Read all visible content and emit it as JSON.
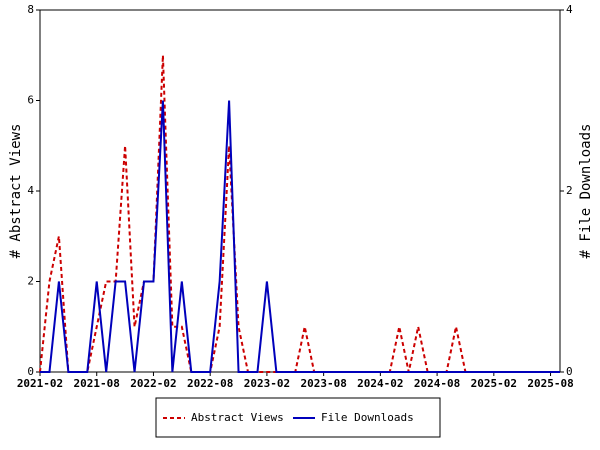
{
  "chart_data": {
    "type": "line",
    "y_label": "# Abstract Views",
    "y2_label": "# File Downloads",
    "x": [
      "2021-02",
      "2021-03",
      "2021-04",
      "2021-05",
      "2021-06",
      "2021-07",
      "2021-08",
      "2021-09",
      "2021-10",
      "2021-11",
      "2021-12",
      "2022-01",
      "2022-02",
      "2022-03",
      "2022-04",
      "2022-05",
      "2022-06",
      "2022-07",
      "2022-08",
      "2022-09",
      "2022-10",
      "2022-11",
      "2022-12",
      "2023-01",
      "2023-02",
      "2023-03",
      "2023-04",
      "2023-05",
      "2023-06",
      "2023-07",
      "2023-08",
      "2023-09",
      "2023-10",
      "2023-11",
      "2023-12",
      "2024-01",
      "2024-02",
      "2024-03",
      "2024-04",
      "2024-05",
      "2024-06",
      "2024-07",
      "2024-08",
      "2024-09",
      "2024-10",
      "2024-11",
      "2024-12",
      "2025-01",
      "2025-02",
      "2025-03",
      "2025-04",
      "2025-05",
      "2025-06",
      "2025-07",
      "2025-08",
      "2025-09"
    ],
    "xticks": [
      "2021-02",
      "2021-08",
      "2022-02",
      "2022-08",
      "2023-02",
      "2023-08",
      "2024-02",
      "2024-08",
      "2025-02",
      "2025-08"
    ],
    "ylim": [
      0,
      8
    ],
    "yticks": [
      0,
      2,
      4,
      6,
      8
    ],
    "y2lim": [
      0,
      4
    ],
    "y2ticks": [
      0,
      2,
      4
    ],
    "series": [
      {
        "name": "Abstract Views",
        "color": "#cc0000",
        "dash": true,
        "values": [
          0,
          2,
          3,
          0,
          0,
          0,
          1,
          2,
          2,
          5,
          1,
          2,
          2,
          7,
          1,
          1,
          0,
          0,
          0,
          1,
          5,
          1,
          0,
          0,
          0,
          0,
          0,
          0,
          1,
          0,
          0,
          0,
          0,
          0,
          0,
          0,
          0,
          0,
          1,
          0,
          1,
          0,
          0,
          0,
          1,
          0,
          0,
          0,
          0,
          0,
          0,
          0,
          0,
          0,
          0,
          0
        ]
      },
      {
        "name": "File Downloads",
        "color": "#0000bb",
        "dash": false,
        "axis": "y2",
        "values": [
          0,
          0,
          1,
          0,
          0,
          0,
          1,
          0,
          1,
          1,
          0,
          1,
          1,
          3,
          0,
          1,
          0,
          0,
          0,
          1,
          3,
          0,
          0,
          0,
          1,
          0,
          0,
          0,
          0,
          0,
          0,
          0,
          0,
          0,
          0,
          0,
          0,
          0,
          0,
          0,
          0,
          0,
          0,
          0,
          0,
          0,
          0,
          0,
          0,
          0,
          0,
          0,
          0,
          0,
          0,
          0
        ]
      }
    ]
  }
}
